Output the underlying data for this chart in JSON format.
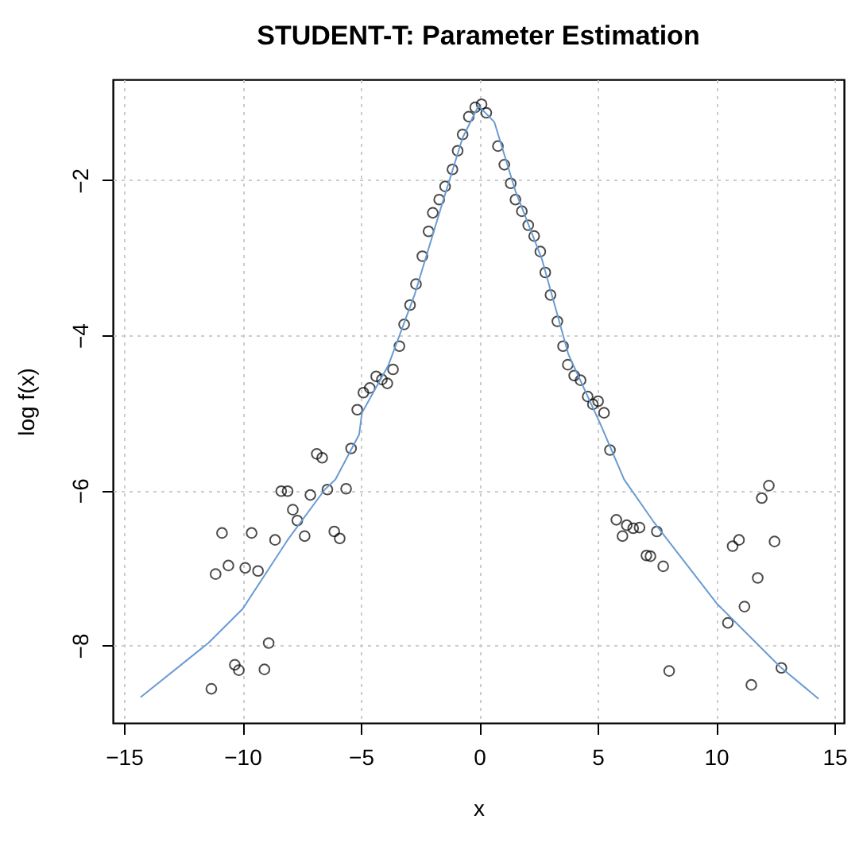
{
  "chart_data": {
    "type": "scatter",
    "title": "STUDENT-T: Parameter Estimation",
    "xlabel": "x",
    "ylabel": "log f(x)",
    "xlim": [
      -15.47,
      15.4
    ],
    "ylim": [
      -9.0,
      -0.7
    ],
    "xticks": [
      -15,
      -10,
      -5,
      0,
      5,
      10,
      15
    ],
    "yticks": [
      -8,
      -6,
      -4,
      -2
    ],
    "grid": true,
    "legend": false,
    "marker": "circle",
    "series": [
      {
        "color": "#000000",
        "x": [
          -5.41,
          -6.86,
          -6.63,
          -8.36,
          -8.09,
          -7.13,
          -6.41,
          -5.62,
          -7.87,
          -7.68,
          -7.37,
          -6.12,
          -5.89,
          -8.62,
          -9.61,
          -10.86,
          -10.59,
          -9.88,
          -9.34,
          -11.13,
          -8.89,
          -10.32,
          -10.15,
          -9.07,
          -11.31,
          0.1,
          -0.17,
          0.3,
          -0.44,
          -0.7,
          -0.91,
          -1.13,
          -1.44,
          -1.69,
          -1.96,
          -2.14,
          -2.4,
          -2.67,
          -2.92,
          -3.17,
          -3.37,
          -3.64,
          -3.88,
          -4.35,
          -4.11,
          -4.62,
          -4.89,
          -5.15,
          0.79,
          1.06,
          1.33,
          1.53,
          1.8,
          2.07,
          2.32,
          2.58,
          2.79,
          3.01,
          3.3,
          3.54,
          3.74,
          4.01,
          4.28,
          4.58,
          4.8,
          5.02,
          5.27,
          5.52,
          5.79,
          6.23,
          6.5,
          6.77,
          6.05,
          7.5,
          7.06,
          7.23,
          7.77,
          8.02,
          12.23,
          11.93,
          10.7,
          10.97,
          12.47,
          11.76,
          11.2,
          10.5,
          12.76,
          11.49
        ],
        "values": [
          -5.46,
          -5.53,
          -5.58,
          -6.01,
          -6.01,
          -6.06,
          -5.99,
          -5.98,
          -6.25,
          -6.39,
          -6.59,
          -6.53,
          -6.62,
          -6.64,
          -6.55,
          -6.55,
          -6.97,
          -7.0,
          -7.04,
          -7.08,
          -7.97,
          -8.25,
          -8.32,
          -8.31,
          -8.56,
          -1.02,
          -1.06,
          -1.13,
          -1.18,
          -1.41,
          -1.62,
          -1.86,
          -2.08,
          -2.25,
          -2.42,
          -2.66,
          -2.98,
          -3.34,
          -3.61,
          -3.86,
          -4.14,
          -4.44,
          -4.62,
          -4.53,
          -4.57,
          -4.68,
          -4.74,
          -4.96,
          -1.56,
          -1.8,
          -2.04,
          -2.25,
          -2.4,
          -2.58,
          -2.72,
          -2.92,
          -3.19,
          -3.48,
          -3.82,
          -4.14,
          -4.38,
          -4.52,
          -4.58,
          -4.79,
          -4.89,
          -4.85,
          -5.0,
          -5.48,
          -6.38,
          -6.45,
          -6.49,
          -6.48,
          -6.59,
          -6.53,
          -6.84,
          -6.85,
          -6.98,
          -8.33,
          -5.94,
          -6.1,
          -6.72,
          -6.64,
          -6.66,
          -7.13,
          -7.5,
          -7.71,
          -8.29,
          -8.51
        ]
      },
      {
        "type": "line",
        "marker": "none",
        "color": "#6a9bd1",
        "x": [
          -14.3,
          -11.44,
          -9.99,
          -8.09,
          -6.52,
          -6.07,
          -5.07,
          -4.95,
          -3.84,
          -2.72,
          -1.6,
          -0.7,
          -0.03,
          0.64,
          1.53,
          2.65,
          3.77,
          5.11,
          6.12,
          7.35,
          10.03,
          12.72,
          14.33
        ],
        "values": [
          -8.67,
          -7.97,
          -7.53,
          -6.64,
          -5.99,
          -5.86,
          -5.28,
          -5.0,
          -4.39,
          -3.47,
          -2.34,
          -1.45,
          -1.04,
          -1.25,
          -2.14,
          -3.02,
          -4.25,
          -5.14,
          -5.86,
          -6.4,
          -7.46,
          -8.28,
          -8.69
        ]
      }
    ]
  }
}
